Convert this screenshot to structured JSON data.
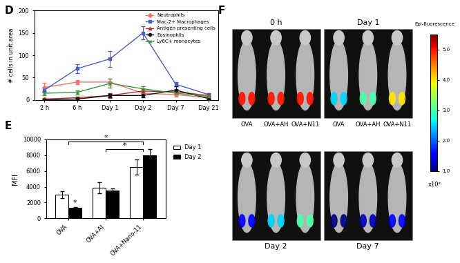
{
  "chart_data": [
    {
      "panel_label": "D",
      "type": "line",
      "categories": [
        "2 h",
        "6 h",
        "Day 1",
        "Day 2",
        "Day 7",
        "Day 21"
      ],
      "y_label": "# cells in unit area",
      "ylim": [
        0,
        200
      ],
      "yticks": [
        0,
        50,
        100,
        150,
        200
      ],
      "legend": "upper right",
      "series": [
        {
          "name": "Neutrophils",
          "color": "#f07070",
          "marker": "diamond",
          "values": [
            28,
            40,
            40,
            15,
            12,
            5
          ],
          "errors": [
            10,
            5,
            8,
            5,
            5,
            3
          ]
        },
        {
          "name": "Mac-2+ Macrophages",
          "color": "#4a5fc1",
          "marker": "square",
          "values": [
            22,
            70,
            92,
            150,
            35,
            12
          ],
          "errors": [
            5,
            10,
            18,
            15,
            5,
            3
          ]
        },
        {
          "name": "Antigen presenting cells",
          "color": "#b03030",
          "marker": "triangle",
          "values": [
            2,
            5,
            10,
            20,
            18,
            10
          ],
          "errors": [
            2,
            3,
            5,
            5,
            6,
            3
          ]
        },
        {
          "name": "Eosinophils",
          "color": "#111111",
          "marker": "circle",
          "values": [
            0,
            2,
            10,
            10,
            22,
            3
          ],
          "errors": [
            1,
            2,
            4,
            4,
            8,
            2
          ]
        },
        {
          "name": "Ly6C+ monocytes",
          "color": "#3a9a3a",
          "marker": "cross",
          "values": [
            15,
            17,
            37,
            25,
            15,
            8
          ],
          "errors": [
            4,
            5,
            10,
            6,
            5,
            3
          ]
        }
      ]
    },
    {
      "panel_label": "E",
      "type": "bar",
      "categories": [
        "OVA",
        "OVA+Al",
        "OVA+Nano-11"
      ],
      "y_label": "MFI",
      "ylim": [
        0,
        10000
      ],
      "yticks": [
        0,
        2000,
        4000,
        6000,
        8000,
        10000
      ],
      "legend": "upper right",
      "series": [
        {
          "name": "Day 1",
          "color": "#ffffff",
          "values": [
            3000,
            3900,
            6500
          ],
          "errors": [
            400,
            700,
            1000
          ]
        },
        {
          "name": "Day 2",
          "color": "#000000",
          "values": [
            1300,
            3550,
            8000
          ],
          "errors": [
            150,
            200,
            800
          ]
        }
      ],
      "annotations": [
        {
          "text": "*",
          "between": [
            0,
            2
          ]
        },
        {
          "text": "*",
          "between": [
            1,
            2
          ]
        },
        {
          "text": "*",
          "category": 0,
          "series": "Day 2"
        }
      ]
    },
    {
      "panel_label": "F",
      "type": "image",
      "time_points": [
        "0 h",
        "Day 1",
        "Day 2",
        "Day 7"
      ],
      "groups": [
        "OVA",
        "OVA+AH",
        "OVA+N11"
      ],
      "intensity": [
        [
          5,
          5,
          5
        ],
        [
          2.5,
          3,
          4
        ],
        [
          1.5,
          2.5,
          3
        ],
        [
          1,
          1.2,
          1.5
        ]
      ],
      "colorbar_label": "Epi-fluorescence",
      "colorbar_unit": "x10⁸",
      "colorbar_range": [
        1,
        5.5
      ],
      "colorbar_ticks": [
        {
          "value": 1,
          "label": "1.0"
        },
        {
          "value": 2,
          "label": "2.0"
        },
        {
          "value": 3,
          "label": "3.0"
        },
        {
          "value": 4,
          "label": "4.0"
        },
        {
          "value": 5,
          "label": "5.0"
        }
      ]
    }
  ]
}
